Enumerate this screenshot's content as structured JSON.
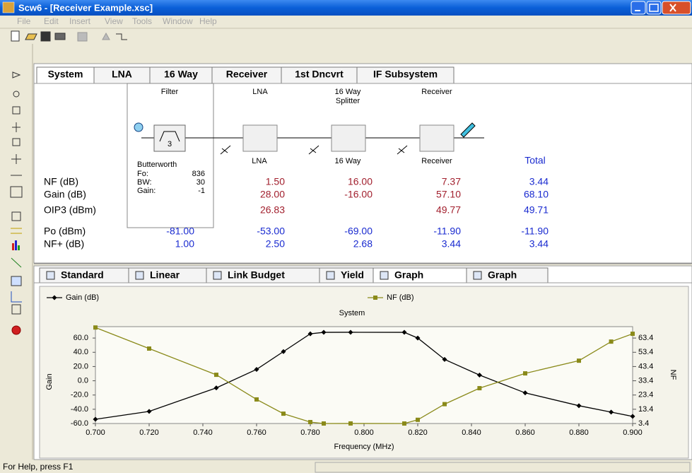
{
  "window": {
    "title": "Scw6 - [Receiver Example.xsc]"
  },
  "menu": [
    "File",
    "Edit",
    "Insert",
    "View",
    "Tools",
    "Window",
    "Help"
  ],
  "top_tabs": [
    "System",
    "LNA",
    "16 Way",
    "Receiver",
    "1st Dncvrt",
    "IF Subsystem"
  ],
  "schematic": {
    "headers": [
      "Filter",
      "LNA",
      "16 Way",
      "Receiver"
    ],
    "header_sub": "Splitter",
    "filter_order": "3",
    "filter": {
      "type": "Butterworth",
      "params": [
        {
          "name": "Fo:",
          "value": "836"
        },
        {
          "name": "BW:",
          "value": "30"
        },
        {
          "name": "Gain:",
          "value": "-1"
        }
      ]
    },
    "block_labels": [
      "LNA",
      "16 Way",
      "Receiver",
      "Total"
    ]
  },
  "table": {
    "rows": [
      {
        "label": "NF (dB)",
        "values": [
          "1.50",
          "16.00",
          "7.37",
          "3.44"
        ]
      },
      {
        "label": "Gain (dB)",
        "values": [
          "28.00",
          "-16.00",
          "57.10",
          "68.10"
        ]
      },
      {
        "label": "OIP3 (dBm)",
        "values": [
          "26.83",
          "",
          "49.77",
          "49.71"
        ]
      },
      {
        "label": "Po (dBm)",
        "filter": "-81.00",
        "values": [
          "-53.00",
          "-69.00",
          "-11.90",
          "-11.90"
        ]
      },
      {
        "label": "NF+ (dB)",
        "filter": "1.00",
        "values": [
          "2.50",
          "2.68",
          "3.44",
          "3.44"
        ]
      }
    ]
  },
  "bottom_tabs": [
    "Standard",
    "Linear",
    "Link Budget",
    "Yield",
    "Graph",
    "Graph"
  ],
  "chart_data": {
    "type": "line",
    "title": "System",
    "x_label": "Frequency (MHz)",
    "y_label": "Gain",
    "y2_label": "NF",
    "xlim": [
      0.7,
      0.9
    ],
    "xticks": [
      {
        "value": 0.7,
        "label": "0.700"
      },
      {
        "value": 0.72,
        "label": "0.720"
      },
      {
        "value": 0.74,
        "label": "0.740"
      },
      {
        "value": 0.76,
        "label": "0.760"
      },
      {
        "value": 0.78,
        "label": "0.780"
      },
      {
        "value": 0.8,
        "label": "0.800"
      },
      {
        "value": 0.82,
        "label": "0.820"
      },
      {
        "value": 0.84,
        "label": "0.840"
      },
      {
        "value": 0.86,
        "label": "0.860"
      },
      {
        "value": 0.88,
        "label": "0.880"
      },
      {
        "value": 0.9,
        "label": "0.900"
      }
    ],
    "ylim": [
      -60,
      76
    ],
    "yticks": [
      {
        "value": -60,
        "label": "-60.0"
      },
      {
        "value": -40,
        "label": "-40.0"
      },
      {
        "value": -20,
        "label": "-20.0"
      },
      {
        "value": 0,
        "label": "0.0"
      },
      {
        "value": 20,
        "label": "20.0"
      },
      {
        "value": 40,
        "label": "40.0"
      },
      {
        "value": 60,
        "label": "60.0"
      }
    ],
    "y2lim": [
      3.4,
      71.4
    ],
    "y2ticks": [
      3.4,
      13.4,
      23.4,
      33.4,
      43.4,
      53.4,
      63.4
    ],
    "x": [
      0.7,
      0.72,
      0.745,
      0.76,
      0.77,
      0.78,
      0.785,
      0.795,
      0.815,
      0.82,
      0.83,
      0.843,
      0.86,
      0.88,
      0.892,
      0.9
    ],
    "series": [
      {
        "name": "Gain (dB)",
        "color": "#000000",
        "marker": "diamond",
        "values": [
          -54,
          -43,
          -10,
          16,
          41,
          66,
          68,
          68.1,
          68,
          60,
          30,
          8,
          -17,
          -35,
          -44,
          -50
        ]
      },
      {
        "name": "NF (dB)",
        "color": "#8a8a1a",
        "marker": "square",
        "axis": "y2",
        "values": [
          70.8,
          56,
          37.6,
          20.3,
          10.3,
          4.4,
          3.4,
          3.44,
          3.4,
          6,
          17,
          28.2,
          38.6,
          47.5,
          60.9,
          66.4
        ]
      }
    ]
  },
  "status": "For Help, press F1"
}
